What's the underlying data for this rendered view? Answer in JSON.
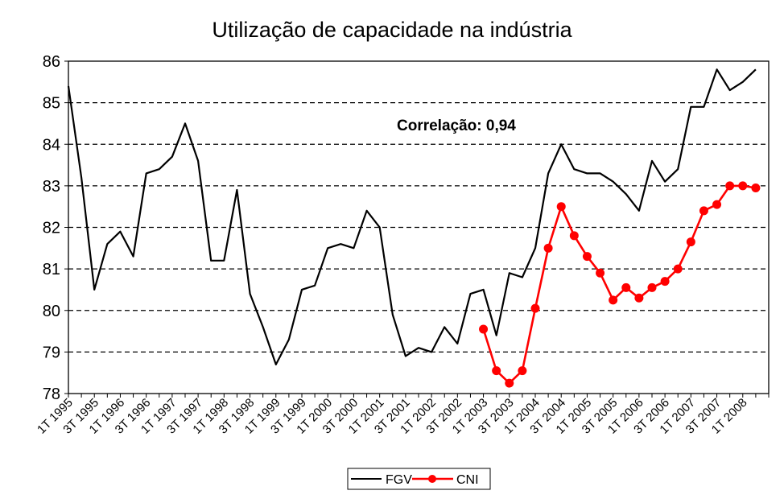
{
  "chart_data": {
    "type": "line",
    "title": "Utilização de capacidade na indústria",
    "annotation": "Correlação: 0,94",
    "ylim": [
      78,
      86
    ],
    "y_ticks": [
      78,
      79,
      80,
      81,
      82,
      83,
      84,
      85,
      86
    ],
    "grid": "horizontal-dashed",
    "legend_position": "bottom",
    "x_tick_labels": [
      "1T 1995",
      "3T 1995",
      "1T 1996",
      "3T 1996",
      "1T 1997",
      "3T 1997",
      "1T 1998",
      "3T 1998",
      "1T 1999",
      "3T 1999",
      "1T 2000",
      "3T 2000",
      "1T 2001",
      "3T 2001",
      "1T 2002",
      "3T 2002",
      "1T 2003",
      "3T 2003",
      "1T 2004",
      "3T 2004",
      "1T 2005",
      "3T 2005",
      "1T 2006",
      "3T 2006",
      "1T 2007",
      "3T 2007",
      "1T 2008"
    ],
    "x_count": 55,
    "series": [
      {
        "name": "FGV",
        "color": "#000000",
        "marker": "none",
        "start_index": 0,
        "values": [
          85.4,
          83.2,
          80.5,
          81.6,
          81.9,
          81.3,
          83.3,
          83.4,
          83.7,
          84.5,
          83.6,
          81.2,
          81.2,
          82.9,
          80.4,
          79.6,
          78.7,
          79.3,
          80.5,
          80.6,
          81.5,
          81.6,
          81.5,
          82.4,
          82.0,
          79.9,
          78.9,
          79.1,
          79.0,
          79.6,
          79.2,
          80.4,
          80.5,
          79.4,
          80.9,
          80.8,
          81.5,
          83.3,
          84.0,
          83.4,
          83.3,
          83.3,
          83.1,
          82.8,
          82.4,
          83.6,
          83.1,
          83.4,
          84.9,
          84.9,
          85.8,
          85.3,
          85.5,
          85.8
        ]
      },
      {
        "name": "CNI",
        "color": "#ff0000",
        "marker": "circle",
        "start_index": 32,
        "values": [
          79.55,
          78.55,
          78.25,
          78.55,
          80.05,
          81.5,
          82.5,
          81.8,
          81.3,
          80.9,
          80.25,
          80.55,
          80.3,
          80.55,
          80.7,
          81.0,
          81.65,
          82.4,
          82.55,
          83.0,
          83.0,
          82.95
        ]
      }
    ]
  }
}
